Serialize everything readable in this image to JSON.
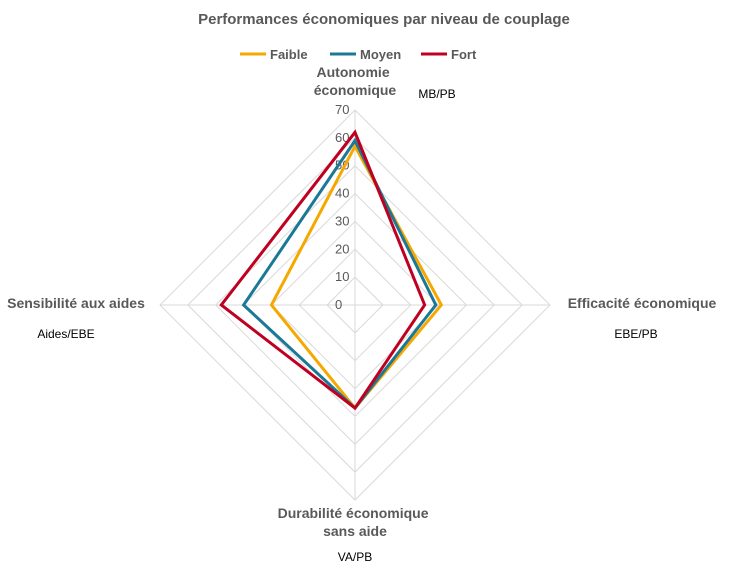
{
  "chart_data": {
    "type": "radar",
    "title": "Performances économiques par niveau de couplage",
    "axes": [
      {
        "label_lines": [
          "Autonomie",
          "économique"
        ],
        "unit": "MB/PB"
      },
      {
        "label_lines": [
          "Efficacité économique"
        ],
        "unit": "EBE/PB"
      },
      {
        "label_lines": [
          "Durabilité économique",
          "sans aide"
        ],
        "unit": "VA/PB"
      },
      {
        "label_lines": [
          "Sensibilité aux aides"
        ],
        "unit": "Aides/EBE"
      }
    ],
    "range": [
      0,
      70
    ],
    "ticks": [
      "0",
      "10",
      "20",
      "30",
      "40",
      "50",
      "60",
      "70"
    ],
    "tick_values": [
      0,
      10,
      20,
      30,
      40,
      50,
      60,
      70
    ],
    "series": [
      {
        "name": "Faible",
        "color": "#f5a800",
        "values": [
          57,
          31,
          37,
          30
        ]
      },
      {
        "name": "Moyen",
        "color": "#1b7896",
        "values": [
          59,
          29,
          37,
          40
        ]
      },
      {
        "name": "Fort",
        "color": "#c00020",
        "values": [
          62,
          25,
          37,
          48
        ]
      }
    ],
    "legend_position": "top",
    "grid": true
  }
}
